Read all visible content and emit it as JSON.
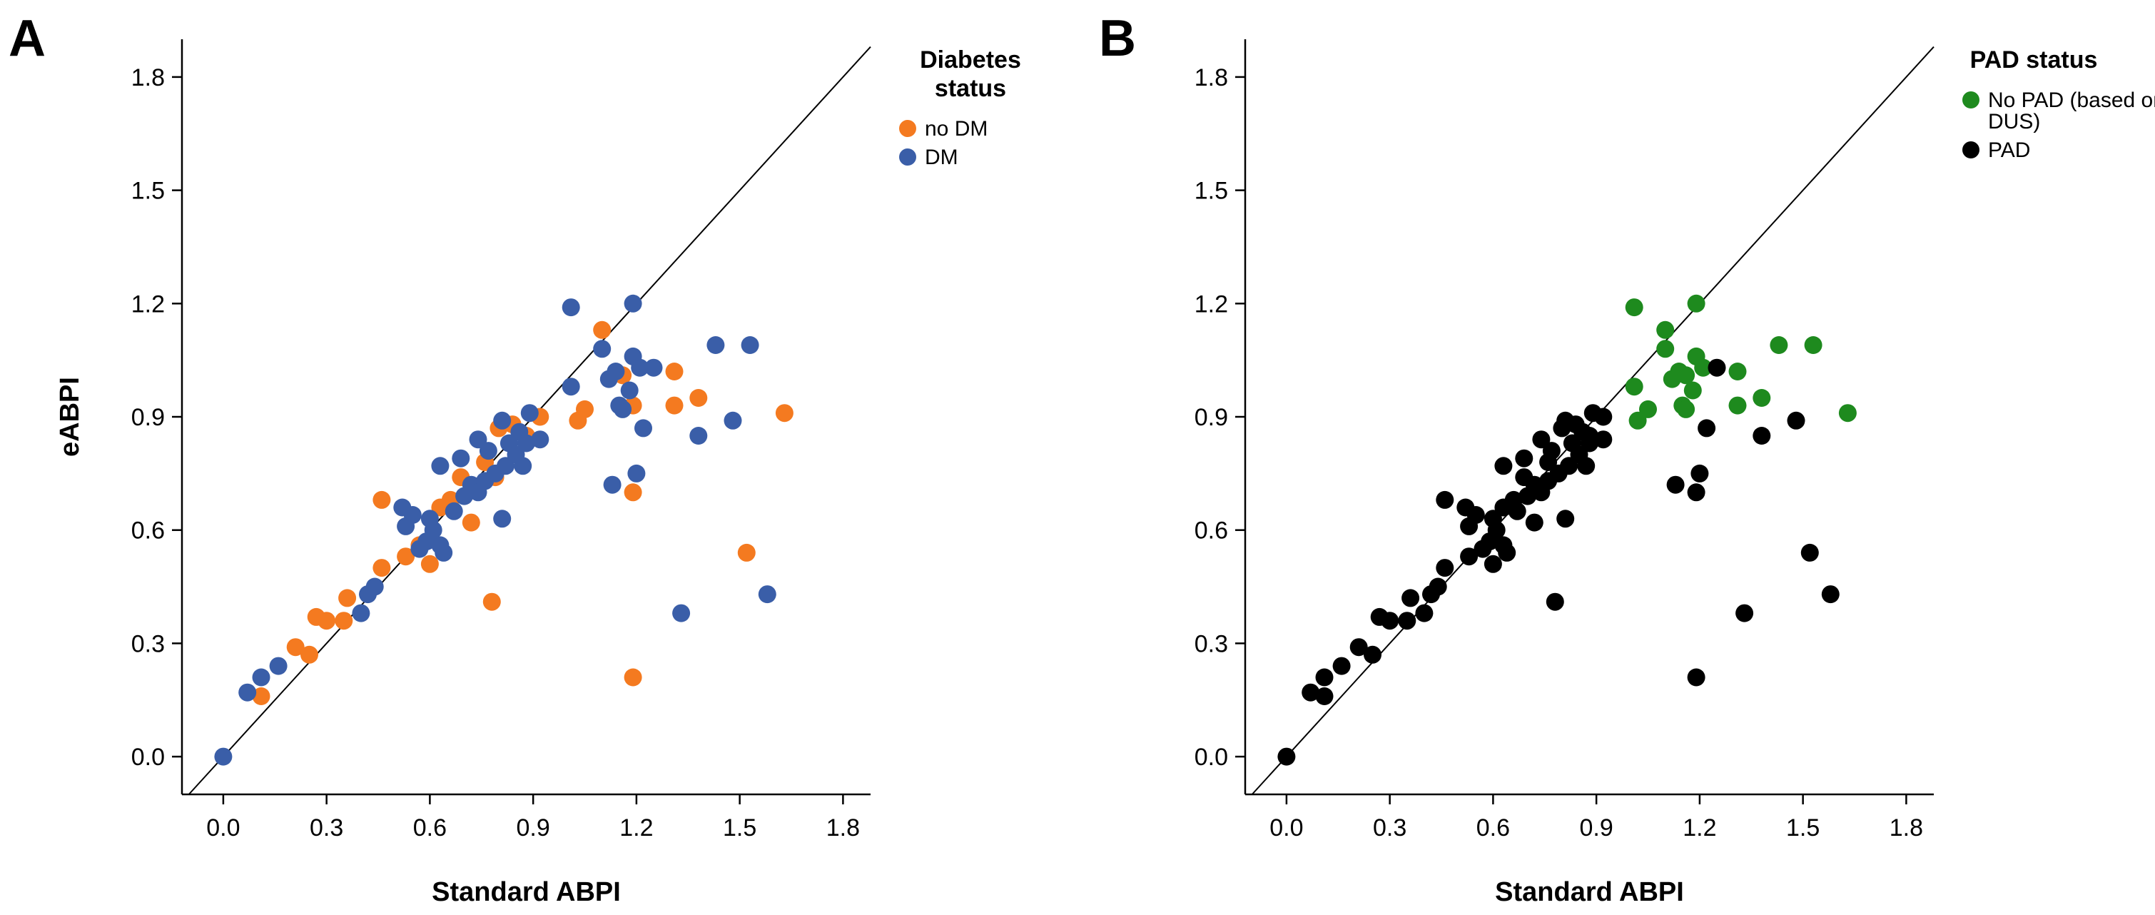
{
  "chart_data": [
    {
      "type": "scatter",
      "panel_label": "A",
      "title": "",
      "xlabel": "Standard ABPI",
      "ylabel": "eABPI",
      "xlim": [
        -0.12,
        1.88
      ],
      "ylim": [
        -0.1,
        1.9
      ],
      "xticks": [
        "0.0",
        "0.3",
        "0.6",
        "0.9",
        "1.2",
        "1.5",
        "1.8"
      ],
      "yticks": [
        "0.0",
        "0.3",
        "0.6",
        "0.9",
        "1.2",
        "1.5",
        "1.8"
      ],
      "grid": false,
      "reference_line": "identity",
      "legend": {
        "title_lines": [
          "Diabetes",
          "status"
        ],
        "placement": "top-right",
        "entries": [
          "no DM",
          "DM"
        ]
      },
      "series": [
        {
          "name": "no DM",
          "color": "#f47a20",
          "points": [
            [
              0.11,
              0.16
            ],
            [
              0.21,
              0.29
            ],
            [
              0.25,
              0.27
            ],
            [
              0.27,
              0.37
            ],
            [
              0.3,
              0.36
            ],
            [
              0.35,
              0.36
            ],
            [
              0.36,
              0.42
            ],
            [
              0.46,
              0.68
            ],
            [
              0.46,
              0.5
            ],
            [
              0.53,
              0.53
            ],
            [
              0.57,
              0.56
            ],
            [
              0.6,
              0.51
            ],
            [
              0.63,
              0.66
            ],
            [
              0.66,
              0.68
            ],
            [
              0.69,
              0.74
            ],
            [
              0.72,
              0.62
            ],
            [
              0.76,
              0.78
            ],
            [
              0.78,
              0.41
            ],
            [
              0.79,
              0.74
            ],
            [
              0.8,
              0.87
            ],
            [
              0.84,
              0.88
            ],
            [
              0.88,
              0.85
            ],
            [
              0.92,
              0.9
            ],
            [
              1.03,
              0.89
            ],
            [
              1.05,
              0.92
            ],
            [
              1.1,
              1.13
            ],
            [
              1.16,
              1.01
            ],
            [
              1.19,
              0.7
            ],
            [
              1.19,
              0.21
            ],
            [
              1.19,
              0.93
            ],
            [
              1.31,
              1.02
            ],
            [
              1.31,
              0.93
            ],
            [
              1.38,
              0.95
            ],
            [
              1.52,
              0.54
            ],
            [
              1.63,
              0.91
            ]
          ]
        },
        {
          "name": "DM",
          "color": "#3a5ea8",
          "points": [
            [
              0.0,
              0.0
            ],
            [
              0.07,
              0.17
            ],
            [
              0.11,
              0.21
            ],
            [
              0.16,
              0.24
            ],
            [
              0.4,
              0.38
            ],
            [
              0.42,
              0.43
            ],
            [
              0.44,
              0.45
            ],
            [
              0.52,
              0.66
            ],
            [
              0.53,
              0.61
            ],
            [
              0.55,
              0.64
            ],
            [
              0.57,
              0.55
            ],
            [
              0.59,
              0.57
            ],
            [
              0.6,
              0.63
            ],
            [
              0.61,
              0.6
            ],
            [
              0.63,
              0.56
            ],
            [
              0.64,
              0.54
            ],
            [
              0.63,
              0.77
            ],
            [
              0.67,
              0.65
            ],
            [
              0.69,
              0.79
            ],
            [
              0.7,
              0.69
            ],
            [
              0.72,
              0.72
            ],
            [
              0.74,
              0.84
            ],
            [
              0.74,
              0.7
            ],
            [
              0.76,
              0.73
            ],
            [
              0.77,
              0.81
            ],
            [
              0.79,
              0.75
            ],
            [
              0.81,
              0.89
            ],
            [
              0.81,
              0.63
            ],
            [
              0.82,
              0.77
            ],
            [
              0.83,
              0.83
            ],
            [
              0.85,
              0.8
            ],
            [
              0.86,
              0.86
            ],
            [
              0.87,
              0.77
            ],
            [
              0.88,
              0.83
            ],
            [
              0.89,
              0.91
            ],
            [
              0.92,
              0.84
            ],
            [
              1.01,
              1.19
            ],
            [
              1.01,
              0.98
            ],
            [
              1.1,
              1.08
            ],
            [
              1.12,
              1.0
            ],
            [
              1.13,
              0.72
            ],
            [
              1.14,
              1.02
            ],
            [
              1.15,
              0.93
            ],
            [
              1.16,
              0.92
            ],
            [
              1.18,
              0.97
            ],
            [
              1.19,
              1.06
            ],
            [
              1.19,
              1.2
            ],
            [
              1.2,
              0.75
            ],
            [
              1.21,
              1.03
            ],
            [
              1.22,
              0.87
            ],
            [
              1.25,
              1.03
            ],
            [
              1.33,
              0.38
            ],
            [
              1.38,
              0.85
            ],
            [
              1.43,
              1.09
            ],
            [
              1.48,
              0.89
            ],
            [
              1.53,
              1.09
            ],
            [
              1.58,
              0.43
            ]
          ]
        }
      ]
    },
    {
      "type": "scatter",
      "panel_label": "B",
      "title": "",
      "xlabel": "Standard ABPI",
      "ylabel": "",
      "xlim": [
        -0.12,
        1.88
      ],
      "ylim": [
        -0.1,
        1.9
      ],
      "xticks": [
        "0.0",
        "0.3",
        "0.6",
        "0.9",
        "1.2",
        "1.5",
        "1.8"
      ],
      "yticks": [
        "0.0",
        "0.3",
        "0.6",
        "0.9",
        "1.2",
        "1.5",
        "1.8"
      ],
      "grid": false,
      "reference_line": "identity",
      "legend": {
        "title_lines": [
          "PAD status"
        ],
        "placement": "top-right",
        "entries": [
          "No PAD (based on DUS)",
          "PAD"
        ],
        "entry_lines": [
          [
            "No PAD (based on",
            "DUS)"
          ],
          [
            "PAD"
          ]
        ]
      },
      "series": [
        {
          "name": "No PAD (based on DUS)",
          "color": "#1e8a1e",
          "points": [
            [
              1.01,
              1.19
            ],
            [
              1.01,
              0.98
            ],
            [
              1.02,
              0.89
            ],
            [
              1.05,
              0.92
            ],
            [
              1.1,
              1.13
            ],
            [
              1.1,
              1.08
            ],
            [
              1.12,
              1.0
            ],
            [
              1.14,
              1.02
            ],
            [
              1.15,
              0.93
            ],
            [
              1.16,
              0.92
            ],
            [
              1.16,
              1.01
            ],
            [
              1.18,
              0.97
            ],
            [
              1.19,
              1.06
            ],
            [
              1.19,
              1.2
            ],
            [
              1.21,
              1.03
            ],
            [
              1.31,
              1.02
            ],
            [
              1.31,
              0.93
            ],
            [
              1.38,
              0.95
            ],
            [
              1.43,
              1.09
            ],
            [
              1.53,
              1.09
            ],
            [
              1.63,
              0.91
            ]
          ]
        },
        {
          "name": "PAD",
          "color": "#000000",
          "points": [
            [
              0.0,
              0.0
            ],
            [
              0.07,
              0.17
            ],
            [
              0.11,
              0.16
            ],
            [
              0.11,
              0.21
            ],
            [
              0.16,
              0.24
            ],
            [
              0.21,
              0.29
            ],
            [
              0.25,
              0.27
            ],
            [
              0.27,
              0.37
            ],
            [
              0.3,
              0.36
            ],
            [
              0.35,
              0.36
            ],
            [
              0.36,
              0.42
            ],
            [
              0.4,
              0.38
            ],
            [
              0.42,
              0.43
            ],
            [
              0.44,
              0.45
            ],
            [
              0.46,
              0.5
            ],
            [
              0.46,
              0.68
            ],
            [
              0.52,
              0.66
            ],
            [
              0.53,
              0.61
            ],
            [
              0.53,
              0.53
            ],
            [
              0.55,
              0.64
            ],
            [
              0.57,
              0.55
            ],
            [
              0.59,
              0.57
            ],
            [
              0.6,
              0.51
            ],
            [
              0.6,
              0.63
            ],
            [
              0.61,
              0.6
            ],
            [
              0.63,
              0.56
            ],
            [
              0.63,
              0.66
            ],
            [
              0.64,
              0.54
            ],
            [
              0.63,
              0.77
            ],
            [
              0.66,
              0.68
            ],
            [
              0.67,
              0.65
            ],
            [
              0.69,
              0.74
            ],
            [
              0.69,
              0.79
            ],
            [
              0.7,
              0.69
            ],
            [
              0.72,
              0.62
            ],
            [
              0.72,
              0.72
            ],
            [
              0.74,
              0.84
            ],
            [
              0.74,
              0.7
            ],
            [
              0.76,
              0.78
            ],
            [
              0.76,
              0.73
            ],
            [
              0.77,
              0.81
            ],
            [
              0.78,
              0.41
            ],
            [
              0.79,
              0.75
            ],
            [
              0.8,
              0.87
            ],
            [
              0.81,
              0.89
            ],
            [
              0.81,
              0.63
            ],
            [
              0.82,
              0.77
            ],
            [
              0.83,
              0.83
            ],
            [
              0.84,
              0.88
            ],
            [
              0.85,
              0.8
            ],
            [
              0.86,
              0.86
            ],
            [
              0.87,
              0.77
            ],
            [
              0.88,
              0.83
            ],
            [
              0.88,
              0.85
            ],
            [
              0.89,
              0.91
            ],
            [
              0.92,
              0.84
            ],
            [
              0.92,
              0.9
            ],
            [
              1.13,
              0.72
            ],
            [
              1.19,
              0.7
            ],
            [
              1.19,
              0.21
            ],
            [
              1.2,
              0.75
            ],
            [
              1.22,
              0.87
            ],
            [
              1.25,
              1.03
            ],
            [
              1.33,
              0.38
            ],
            [
              1.38,
              0.85
            ],
            [
              1.48,
              0.89
            ],
            [
              1.52,
              0.54
            ],
            [
              1.58,
              0.43
            ]
          ]
        }
      ]
    }
  ]
}
